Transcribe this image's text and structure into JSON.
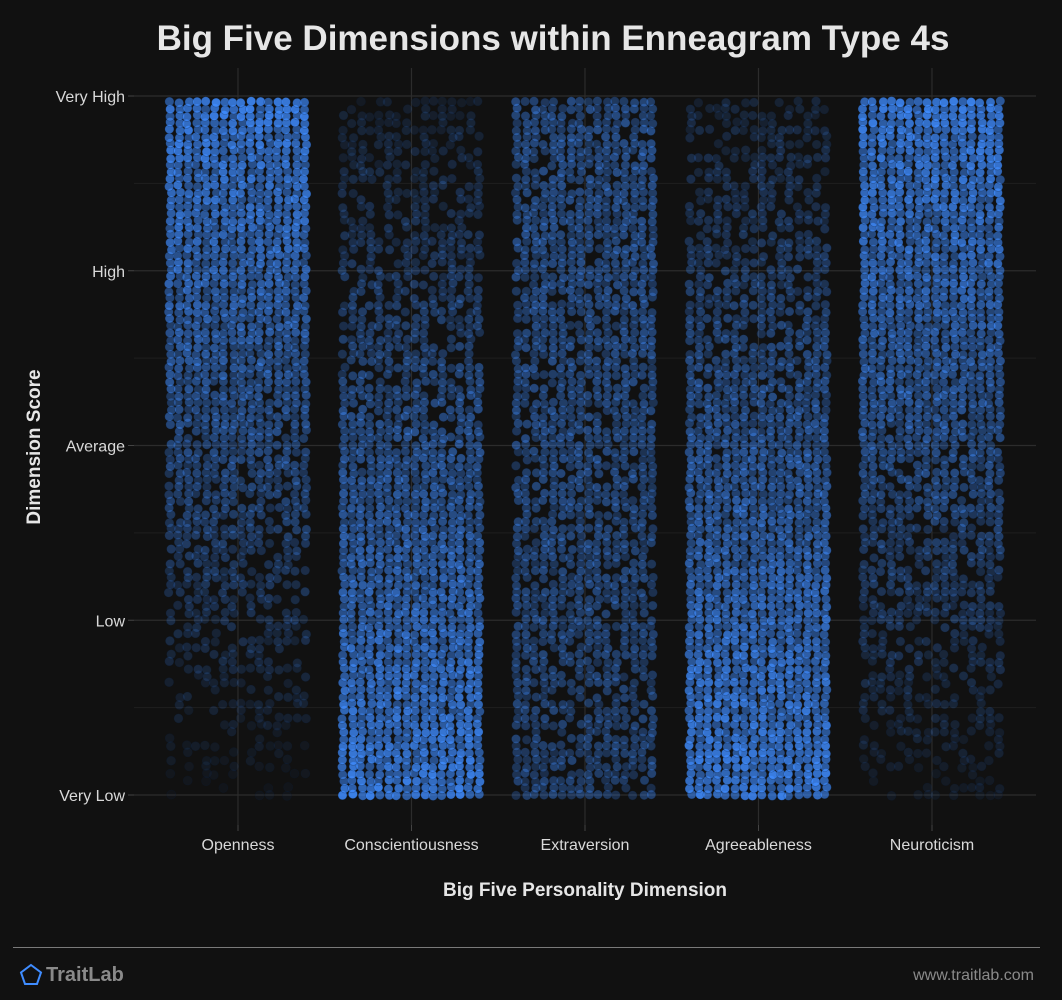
{
  "chart_data": {
    "type": "scatter",
    "title": "Big Five Dimensions within Enneagram Type 4s",
    "xlabel": "Big Five Personality Dimension",
    "ylabel": "Dimension Score",
    "categories": [
      "Openness",
      "Conscientiousness",
      "Extraversion",
      "Agreeableness",
      "Neuroticism"
    ],
    "y_ticks": [
      "Very Low",
      "Low",
      "Average",
      "High",
      "Very High"
    ],
    "ylim": [
      0,
      4
    ],
    "grid": true,
    "point_color": "#3f8cff",
    "density_profiles": [
      {
        "name": "Openness",
        "low_end_density": 0.05,
        "high_end_density": 1.0
      },
      {
        "name": "Conscientiousness",
        "low_end_density": 1.0,
        "high_end_density": 0.15
      },
      {
        "name": "Extraversion",
        "low_end_density": 0.45,
        "high_end_density": 0.55
      },
      {
        "name": "Agreeableness",
        "low_end_density": 1.0,
        "high_end_density": 0.2
      },
      {
        "name": "Neuroticism",
        "low_end_density": 0.1,
        "high_end_density": 1.0
      }
    ]
  },
  "footer": {
    "brand": "TraitLab",
    "brand_icon": "pentagon-icon",
    "url": "www.traitlab.com"
  }
}
